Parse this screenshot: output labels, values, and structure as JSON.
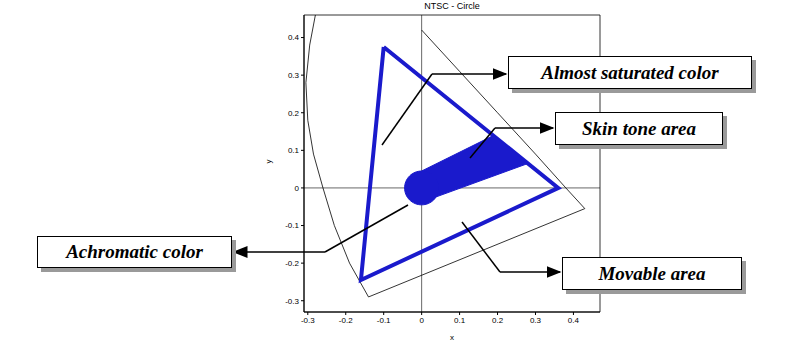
{
  "chart_data": {
    "type": "scatter",
    "title": "NTSC - Circle",
    "x_label": "x",
    "y_label": "y",
    "xlim": [
      -0.31,
      0.47
    ],
    "xticks": [
      -0.3,
      -0.2,
      -0.1,
      0,
      0.1,
      0.2,
      0.3,
      0.4
    ],
    "ylim": [
      -0.33,
      0.46
    ],
    "yticks": [
      -0.3,
      -0.2,
      -0.1,
      0,
      0.1,
      0.2,
      0.3,
      0.4
    ],
    "crosshair": {
      "x": 0,
      "y": 0
    },
    "series": [
      {
        "type": "line",
        "color": "#000000",
        "x": [
          -0.28,
          -0.295,
          -0.305,
          -0.3,
          -0.285,
          -0.26,
          -0.23,
          -0.19,
          -0.14,
          0.43,
          0.38,
          0.3,
          0.2,
          0.1,
          0.0
        ],
        "y": [
          0.46,
          0.38,
          0.28,
          0.18,
          0.09,
          0.0,
          -0.1,
          -0.2,
          -0.29,
          -0.055,
          0.0,
          0.09,
          0.2,
          0.31,
          0.42
        ]
      },
      {
        "type": "line",
        "color": "#1a1acc",
        "x": [
          -0.1,
          0.36,
          -0.16,
          -0.1
        ],
        "y": [
          0.375,
          0.0,
          -0.245,
          0.375
        ]
      },
      {
        "type": "area",
        "color": "#1a1acc",
        "x": [
          0.0,
          0.19,
          0.28,
          0.035
        ],
        "y": [
          0.045,
          0.14,
          0.065,
          -0.025
        ]
      },
      {
        "type": "circle",
        "color": "#1a1acc",
        "center": [
          0,
          0
        ],
        "radius": 0.045
      }
    ],
    "annotations": [
      "Almost saturated color",
      "Skin tone area",
      "Achromatic color",
      "Movable area"
    ]
  }
}
